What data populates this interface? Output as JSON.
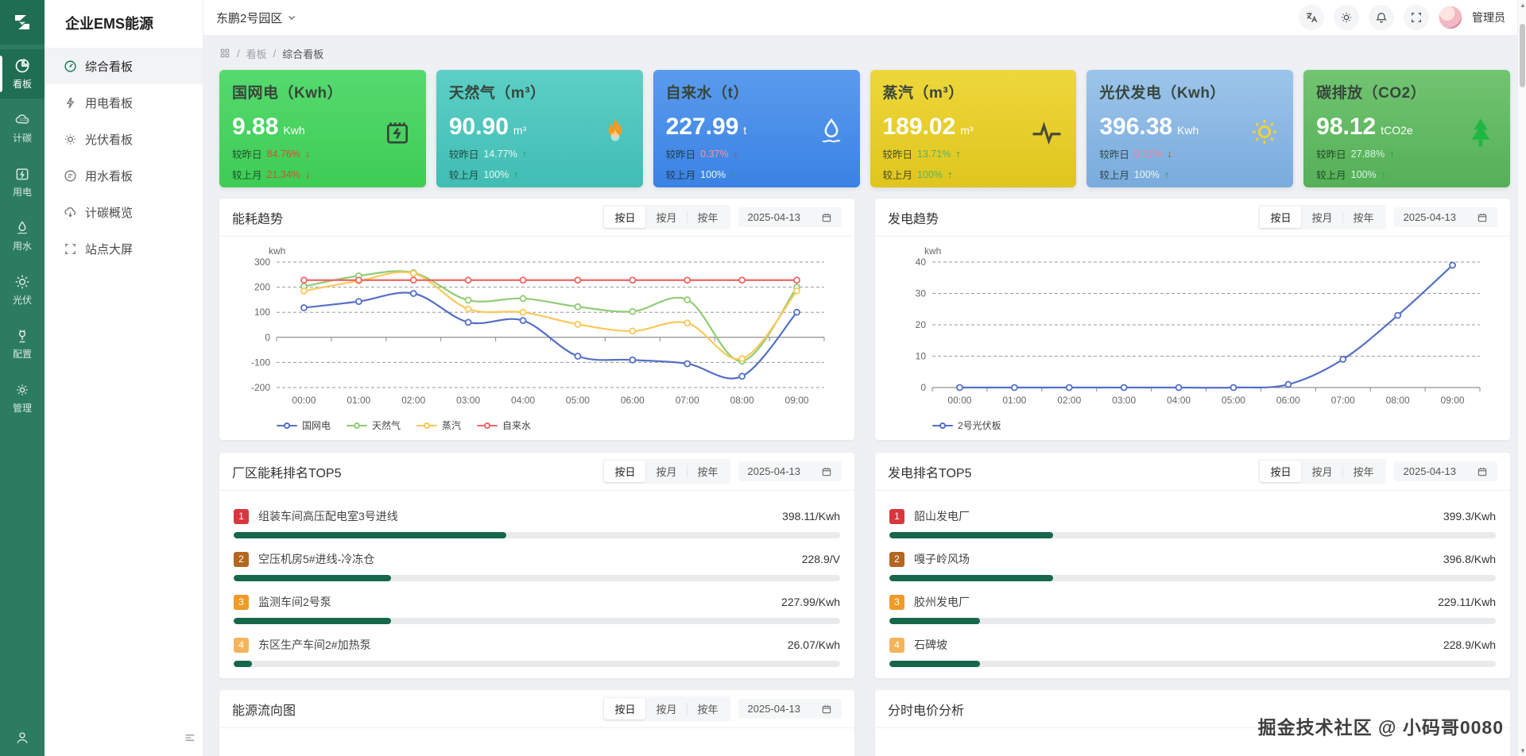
{
  "app": {
    "title": "企业EMS能源",
    "park": "东鹏2号园区",
    "admin": "管理员"
  },
  "rail": {
    "items": [
      {
        "label": "看板"
      },
      {
        "label": "计碳"
      },
      {
        "label": "用电"
      },
      {
        "label": "用水"
      },
      {
        "label": "光伏"
      },
      {
        "label": "配置"
      },
      {
        "label": "管理"
      }
    ]
  },
  "sidebar": {
    "items": [
      {
        "label": "综合看板"
      },
      {
        "label": "用电看板"
      },
      {
        "label": "光伏看板"
      },
      {
        "label": "用水看板"
      },
      {
        "label": "计碳概览"
      },
      {
        "label": "站点大屏"
      }
    ]
  },
  "breadcrumb": {
    "l1": "看板",
    "l2": "综合看板"
  },
  "tabs": [
    "按日",
    "按月",
    "按年"
  ],
  "date": "2025-04-13",
  "cards": [
    {
      "title": "国网电（Kwh）",
      "value": "9.88",
      "unit": "Kwh",
      "day_label": "较昨日",
      "day_pct": "84.76%",
      "day_arrow": "↓",
      "month_label": "较上月",
      "month_pct": "21.34%",
      "month_arrow": "↓"
    },
    {
      "title": "天然气（m³）",
      "value": "90.90",
      "unit": "m³",
      "day_label": "较昨日",
      "day_pct": "14.77%",
      "day_arrow": "↑",
      "month_label": "较上月",
      "month_pct": "100%",
      "month_arrow": "↑"
    },
    {
      "title": "自来水（t）",
      "value": "227.99",
      "unit": "t",
      "day_label": "较昨日",
      "day_pct": "0.37%",
      "day_arrow": "↓",
      "month_label": "较上月",
      "month_pct": "100%",
      "month_arrow": "↑"
    },
    {
      "title": "蒸汽（m³）",
      "value": "189.02",
      "unit": "m³",
      "day_label": "较昨日",
      "day_pct": "13.71%",
      "day_arrow": "↑",
      "month_label": "较上月",
      "month_pct": "100%",
      "month_arrow": "↑"
    },
    {
      "title": "光伏发电（Kwh）",
      "value": "396.38",
      "unit": "Kwh",
      "day_label": "较昨日",
      "day_pct": "0.17%",
      "day_arrow": "↓",
      "month_label": "较上月",
      "month_pct": "100%",
      "month_arrow": "↑"
    },
    {
      "title": "碳排放（CO2）",
      "value": "98.12",
      "unit": "tCO2e",
      "day_label": "较昨日",
      "day_pct": "27.88%",
      "day_arrow": "↑",
      "month_label": "较上月",
      "month_pct": "100%",
      "month_arrow": "↑"
    }
  ],
  "panels": {
    "energy_trend": {
      "title": "能耗趋势"
    },
    "gen_trend": {
      "title": "发电趋势"
    },
    "energy_rank": {
      "title": "厂区能耗排名TOP5"
    },
    "gen_rank": {
      "title": "发电排名TOP5"
    },
    "flow": {
      "title": "能源流向图"
    },
    "price": {
      "title": "分时电价分析"
    }
  },
  "chart_data": [
    {
      "type": "line",
      "title": "能耗趋势",
      "ylabel": "kwh",
      "x": [
        "00:00",
        "01:00",
        "02:00",
        "03:00",
        "04:00",
        "05:00",
        "06:00",
        "07:00",
        "08:00",
        "09:00"
      ],
      "ylim": [
        -200,
        300
      ],
      "yticks": [
        300,
        200,
        100,
        0,
        -100,
        -200
      ],
      "grid": "dashed",
      "legend_position": "bottom-left",
      "series": [
        {
          "name": "国网电",
          "color": "#5470c6",
          "values": [
            118,
            143,
            175,
            60,
            67,
            -75,
            -90,
            -105,
            -155,
            100
          ]
        },
        {
          "name": "天然气",
          "color": "#91cc75",
          "values": [
            203,
            245,
            258,
            148,
            155,
            122,
            103,
            150,
            -95,
            200
          ]
        },
        {
          "name": "蒸汽",
          "color": "#fac858",
          "values": [
            185,
            225,
            255,
            113,
            100,
            52,
            25,
            57,
            -85,
            185
          ]
        },
        {
          "name": "自来水",
          "color": "#ee6666",
          "values": [
            228,
            228,
            228,
            228,
            228,
            228,
            228,
            228,
            228,
            228
          ]
        }
      ]
    },
    {
      "type": "line",
      "title": "发电趋势",
      "ylabel": "kwh",
      "x": [
        "00:00",
        "01:00",
        "02:00",
        "03:00",
        "04:00",
        "05:00",
        "06:00",
        "07:00",
        "08:00",
        "09:00"
      ],
      "ylim": [
        0,
        40
      ],
      "yticks": [
        40,
        30,
        20,
        10,
        0
      ],
      "grid": "dashed",
      "legend_position": "bottom-left",
      "series": [
        {
          "name": "2号光伏板",
          "color": "#5470c6",
          "values": [
            0,
            0,
            0,
            0,
            0,
            0,
            1,
            9,
            23,
            39
          ]
        }
      ]
    }
  ],
  "rank_left": {
    "items": [
      {
        "rank": "1",
        "name": "组装车间高压配电室3号进线",
        "value": "398.11/Kwh",
        "bar": "45%",
        "badge_color": "#d9363e"
      },
      {
        "rank": "2",
        "name": "空压机房5#进线-冷冻仓",
        "value": "228.9/V",
        "bar": "26%",
        "badge_color": "#b4671e"
      },
      {
        "rank": "3",
        "name": "监测车间2号泵",
        "value": "227.99/Kwh",
        "bar": "26%",
        "badge_color": "#ef9b28"
      },
      {
        "rank": "4",
        "name": "东区生产车间2#加热泵",
        "value": "26.07/Kwh",
        "bar": "3%",
        "badge_color": "#f5b45c"
      }
    ]
  },
  "rank_right": {
    "items": [
      {
        "rank": "1",
        "name": "韶山发电厂",
        "value": "399.3/Kwh",
        "bar": "27%",
        "badge_color": "#d9363e"
      },
      {
        "rank": "2",
        "name": "嘎子岭风场",
        "value": "396.8/Kwh",
        "bar": "27%",
        "badge_color": "#b4671e"
      },
      {
        "rank": "3",
        "name": "胶州发电厂",
        "value": "229.11/Kwh",
        "bar": "15%",
        "badge_color": "#ef9b28"
      },
      {
        "rank": "4",
        "name": "石碑坡",
        "value": "228.9/Kwh",
        "bar": "15%",
        "badge_color": "#f5b45c"
      }
    ]
  },
  "watermark": "掘金技术社区 @ 小码哥0080",
  "colors": {
    "accent_green": "#18794e",
    "rail_bg": "#2c7c61",
    "bar_fill": "#17674b"
  }
}
